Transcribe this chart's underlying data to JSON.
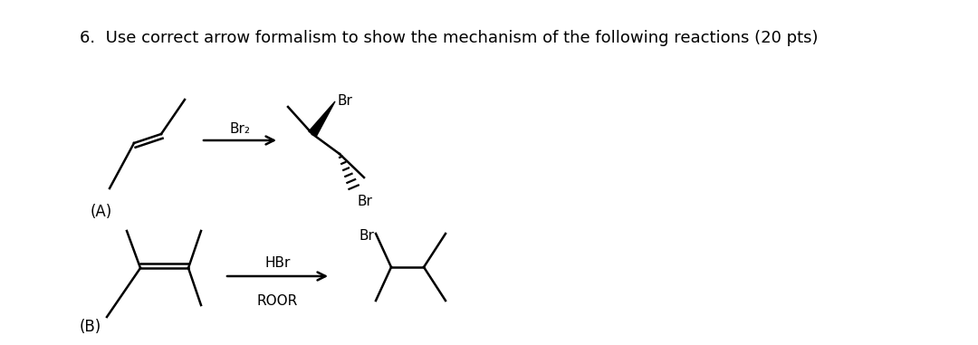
{
  "title": "6.  Use correct arrow formalism to show the mechanism of the following reactions (20 pts)",
  "bg_color": "#ffffff",
  "label_A": "(A)",
  "label_B": "(B)",
  "reagent_A": "Br₂",
  "reagent_B_line1": "HBr",
  "reagent_B_line2": "ROOR",
  "br_upper": "Br",
  "br_lower": "Br",
  "br_product_B": "Br",
  "title_fontsize": 13,
  "bond_lw": 1.8,
  "label_fontsize": 12,
  "br_fontsize": 11,
  "reagent_fontsize": 11
}
